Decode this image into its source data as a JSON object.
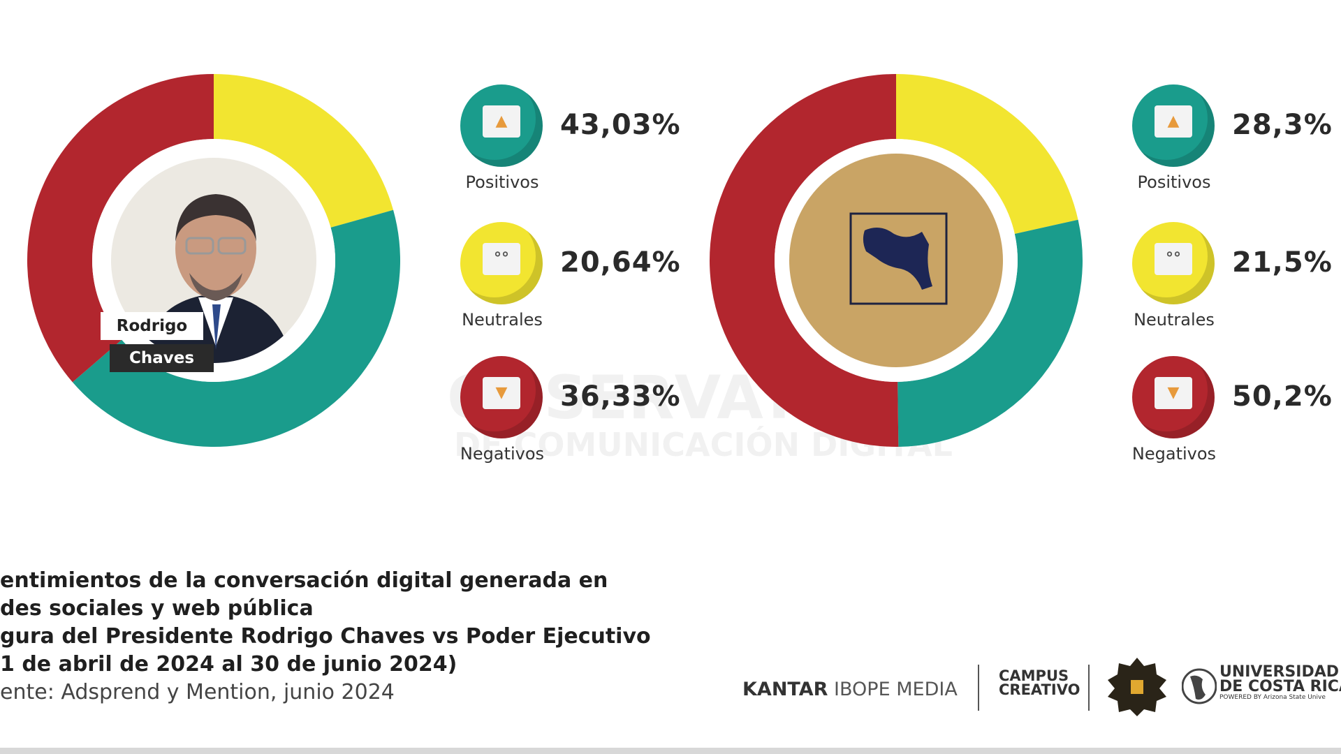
{
  "watermark": {
    "line1": "OBSERVATORIO",
    "line2": "DE COMUNICACIÓN DIGITAL"
  },
  "colors": {
    "positive": "#1a9c8c",
    "neutral": "#f2e530",
    "negative": "#b2262e",
    "background": "#ffffff"
  },
  "chart_data": [
    {
      "type": "pie",
      "title": "Rodrigo Chaves",
      "categories": [
        "Positivos",
        "Neutrales",
        "Negativos"
      ],
      "values": [
        43.03,
        20.64,
        36.33
      ],
      "value_labels": [
        "43,03%",
        "20,64%",
        "36,33%"
      ]
    },
    {
      "type": "pie",
      "title": "Poder Ejecutivo",
      "categories": [
        "Positivos",
        "Neutrales",
        "Negativos"
      ],
      "values": [
        28.3,
        21.5,
        50.2
      ],
      "value_labels": [
        "28,3%",
        "21,5%",
        "50,2%"
      ]
    }
  ],
  "name_tag": {
    "first": "Rodrigo",
    "last": "Chaves"
  },
  "caption": {
    "lines": [
      "entimientos de la conversación digital generada en",
      "des sociales y web pública",
      "gura del Presidente Rodrigo Chaves vs Poder Ejecutivo",
      "1 de abril de 2024 al 30 de junio 2024)"
    ],
    "source": "ente: Adsprend y Mention, junio 2024"
  },
  "logos": {
    "kantar_bold": "KANTAR",
    "kantar_light": "IBOPE MEDIA",
    "campus": "CAMPUS CREATIVO",
    "university_line1": "UNIVERSIDAD LA",
    "university_line2": "DE COSTA RICA",
    "university_line3": "POWERED BY Arizona State Unive"
  }
}
